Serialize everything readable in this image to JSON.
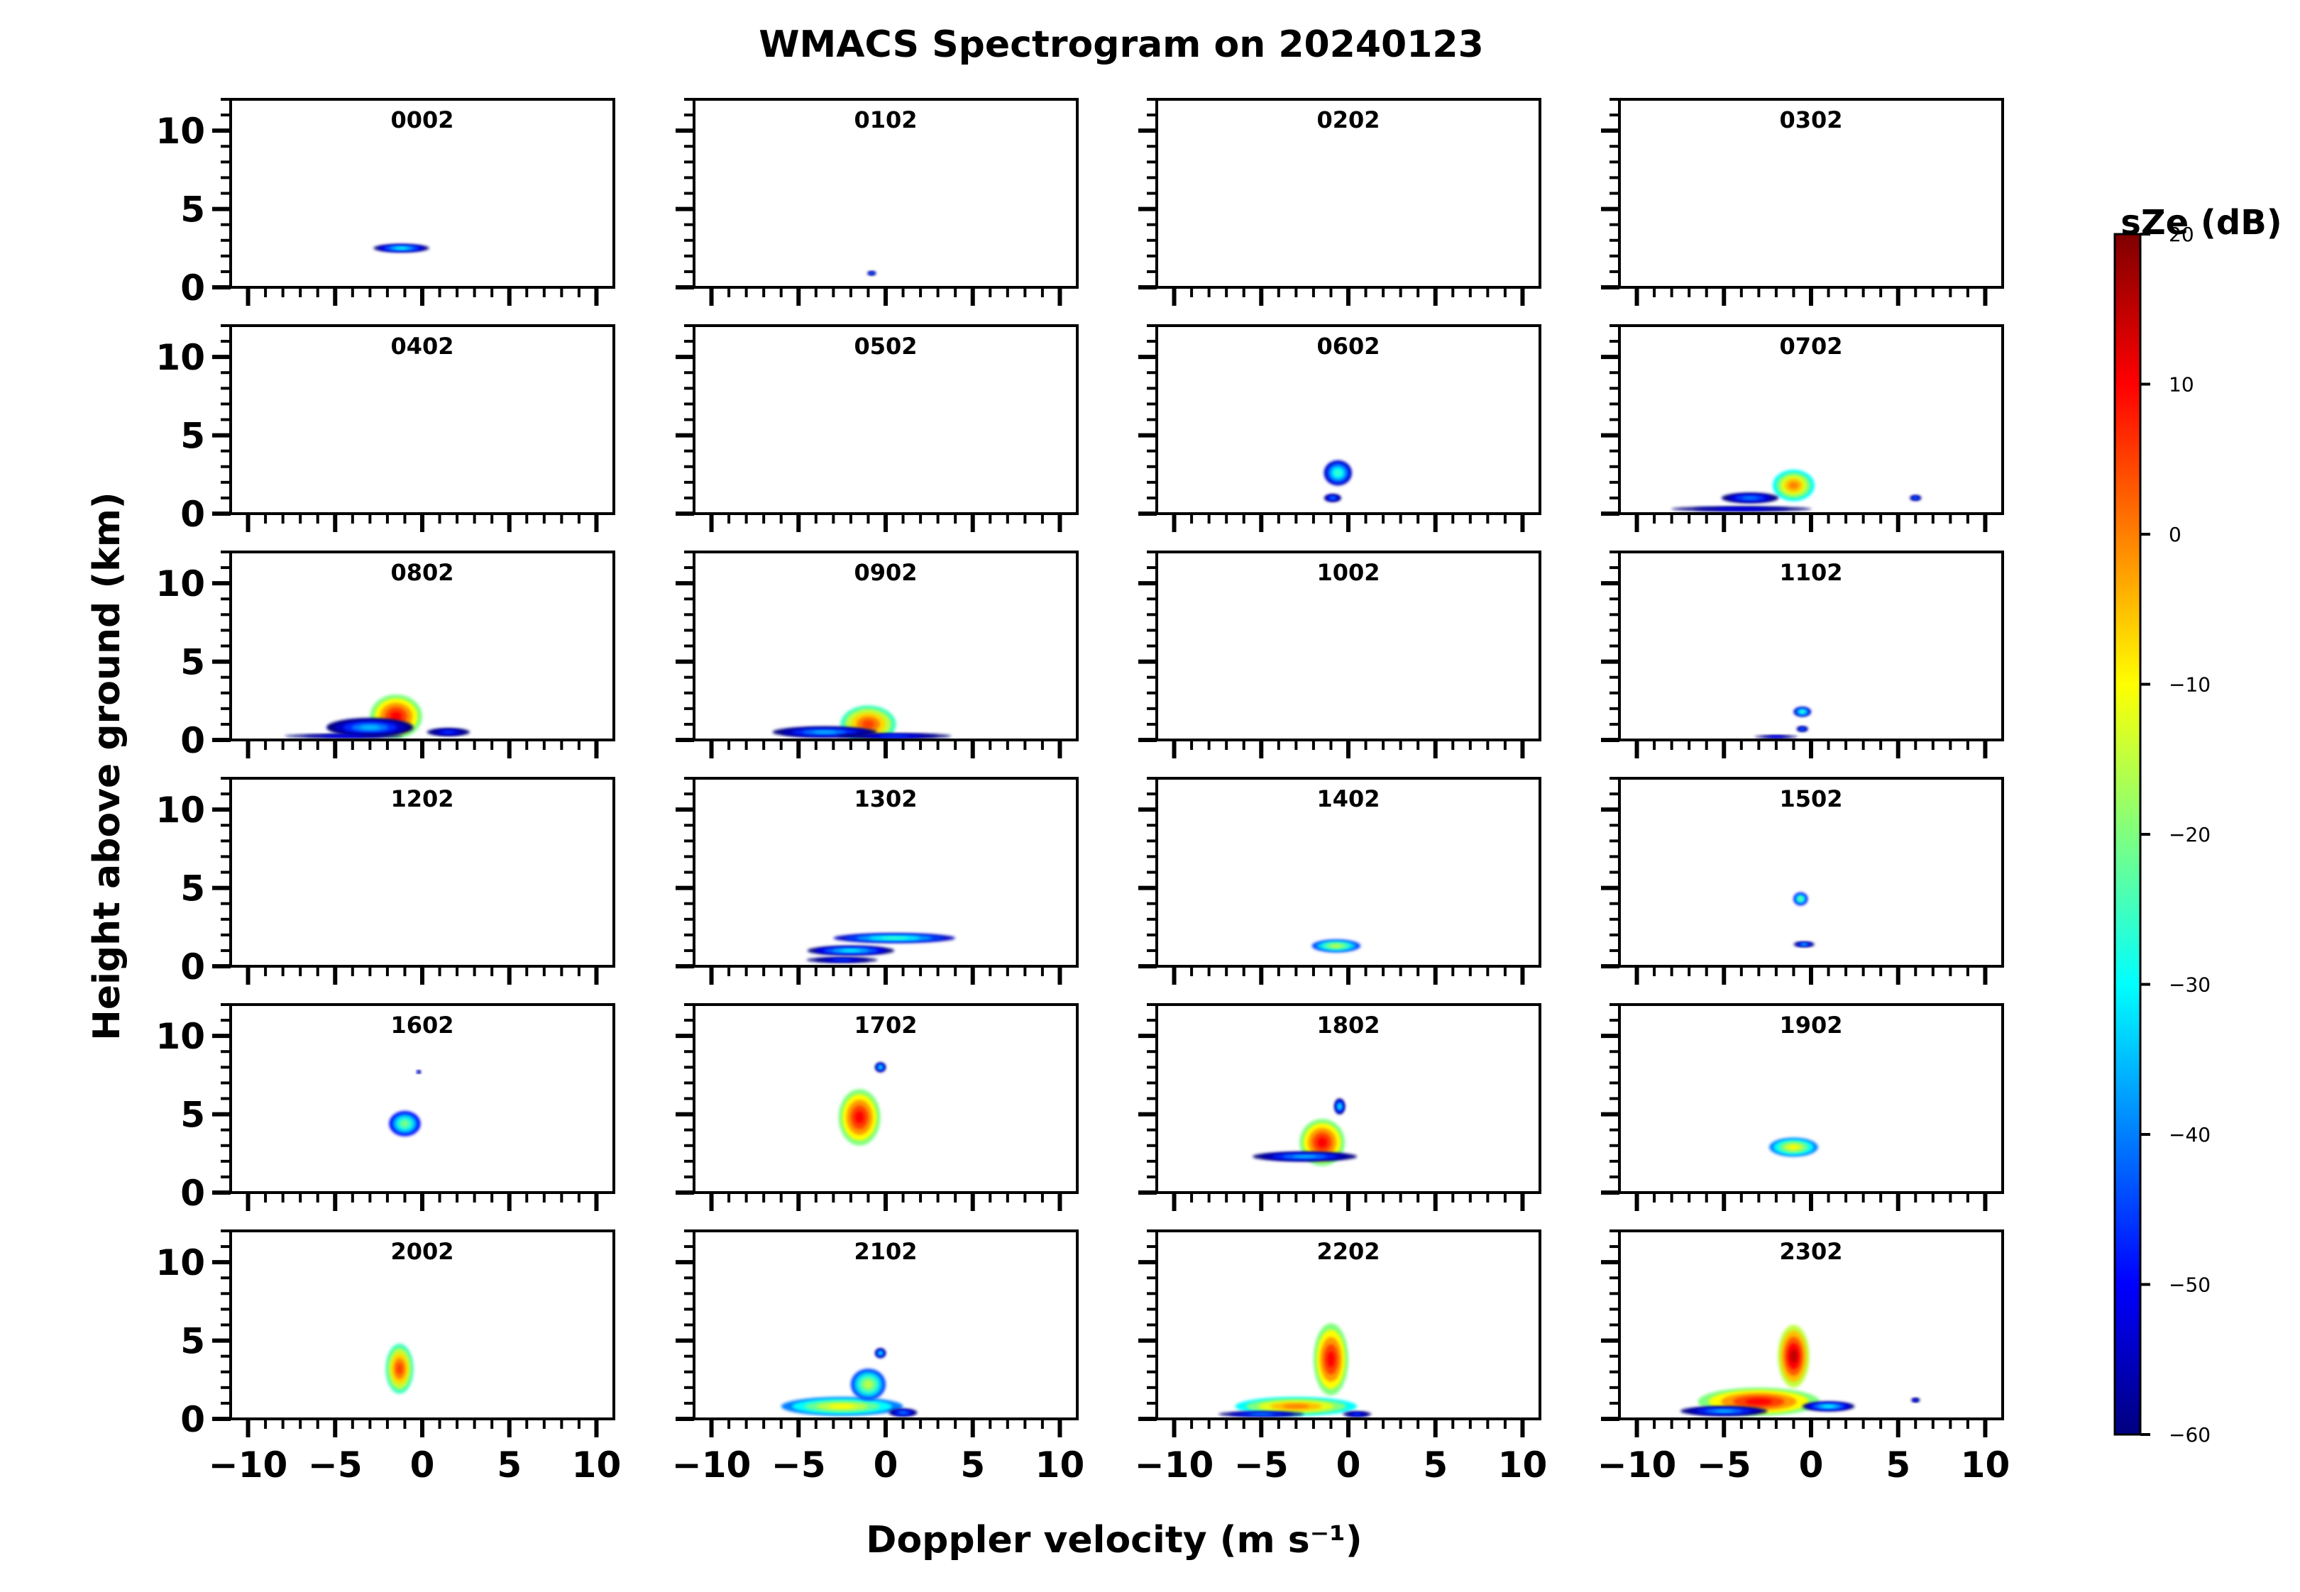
{
  "chart_data": {
    "type": "heatmap",
    "title": "WMACS Spectrogram on 20240123",
    "xlabel": "Doppler velocity (m s⁻¹)",
    "ylabel": "Height above ground (km)",
    "xlim": [
      -11,
      11
    ],
    "ylim": [
      0,
      12
    ],
    "xticks": [
      -10,
      -5,
      0,
      5,
      10
    ],
    "yticks": [
      0,
      5,
      10
    ],
    "xtick_labels": [
      "−10",
      "−5",
      "0",
      "5",
      "10"
    ],
    "ytick_labels": [
      "0",
      "5",
      "10"
    ],
    "grid": false,
    "colorbar": {
      "label": "sZe (dB)",
      "range": [
        -60,
        20
      ],
      "ticks": [
        -60,
        -50,
        -40,
        -30,
        -20,
        -10,
        0,
        10,
        20
      ],
      "tick_labels": [
        "−60",
        "−50",
        "−40",
        "−30",
        "−20",
        "−10",
        "0",
        "10",
        "20"
      ],
      "colormap": "jet",
      "colors": [
        "#00007f",
        "#0000ff",
        "#007fff",
        "#00ffff",
        "#7fff7f",
        "#ffff00",
        "#ff7f00",
        "#ff0000",
        "#7f0000"
      ]
    },
    "panels": [
      {
        "label": "0002",
        "blobs": [
          {
            "v": -1.2,
            "h": 2.5,
            "dv": 1.6,
            "dh": 0.25,
            "db": -30
          }
        ]
      },
      {
        "label": "0102",
        "blobs": [
          {
            "v": -0.8,
            "h": 0.9,
            "dv": 0.3,
            "dh": 0.15,
            "db": -40
          }
        ]
      },
      {
        "label": "0202",
        "blobs": []
      },
      {
        "label": "0302",
        "blobs": []
      },
      {
        "label": "0402",
        "blobs": []
      },
      {
        "label": "0502",
        "blobs": []
      },
      {
        "label": "0602",
        "blobs": [
          {
            "v": -0.6,
            "h": 2.6,
            "dv": 0.8,
            "dh": 0.8,
            "db": -25
          },
          {
            "v": -0.9,
            "h": 1.0,
            "dv": 0.6,
            "dh": 0.3,
            "db": -40
          }
        ]
      },
      {
        "label": "0702",
        "blobs": [
          {
            "v": -1.0,
            "h": 1.8,
            "dv": 1.2,
            "dh": 1.0,
            "db": 0
          },
          {
            "v": -3.5,
            "h": 1.0,
            "dv": 2.0,
            "dh": 0.4,
            "db": -40
          },
          {
            "v": -4.0,
            "h": 0.3,
            "dv": 6.5,
            "dh": 0.25,
            "db": -50
          },
          {
            "v": 6.0,
            "h": 1.0,
            "dv": 0.4,
            "dh": 0.2,
            "db": -40
          }
        ]
      },
      {
        "label": "0802",
        "blobs": [
          {
            "v": -1.5,
            "h": 1.5,
            "dv": 1.5,
            "dh": 1.4,
            "db": 10
          },
          {
            "v": -3.0,
            "h": 0.8,
            "dv": 2.5,
            "dh": 0.6,
            "db": -35
          },
          {
            "v": -4.5,
            "h": 0.25,
            "dv": 5.5,
            "dh": 0.2,
            "db": -50
          },
          {
            "v": 1.5,
            "h": 0.5,
            "dv": 1.5,
            "dh": 0.3,
            "db": -45
          }
        ]
      },
      {
        "label": "0902",
        "blobs": [
          {
            "v": -1.0,
            "h": 1.0,
            "dv": 1.6,
            "dh": 1.2,
            "db": 5
          },
          {
            "v": -3.5,
            "h": 0.5,
            "dv": 3.0,
            "dh": 0.35,
            "db": -35
          },
          {
            "v": 0.5,
            "h": 0.25,
            "dv": 4.0,
            "dh": 0.2,
            "db": -45
          }
        ]
      },
      {
        "label": "1002",
        "blobs": []
      },
      {
        "label": "1102",
        "blobs": [
          {
            "v": -0.5,
            "h": 1.8,
            "dv": 0.5,
            "dh": 0.3,
            "db": -25
          },
          {
            "v": -0.5,
            "h": 0.7,
            "dv": 0.4,
            "dh": 0.2,
            "db": -40
          },
          {
            "v": -2.0,
            "h": 0.2,
            "dv": 2.0,
            "dh": 0.15,
            "db": -50
          }
        ]
      },
      {
        "label": "1202",
        "blobs": []
      },
      {
        "label": "1302",
        "blobs": [
          {
            "v": 0.5,
            "h": 1.8,
            "dv": 3.5,
            "dh": 0.3,
            "db": -25
          },
          {
            "v": -2.0,
            "h": 1.0,
            "dv": 2.5,
            "dh": 0.3,
            "db": -30
          },
          {
            "v": -2.5,
            "h": 0.4,
            "dv": 2.5,
            "dh": 0.2,
            "db": -45
          }
        ]
      },
      {
        "label": "1402",
        "blobs": [
          {
            "v": -0.7,
            "h": 1.3,
            "dv": 1.4,
            "dh": 0.4,
            "db": -15
          }
        ]
      },
      {
        "label": "1502",
        "blobs": [
          {
            "v": -0.6,
            "h": 4.3,
            "dv": 0.4,
            "dh": 0.4,
            "db": -20
          },
          {
            "v": -0.4,
            "h": 1.4,
            "dv": 0.6,
            "dh": 0.15,
            "db": -35
          }
        ]
      },
      {
        "label": "1602",
        "blobs": [
          {
            "v": -1.0,
            "h": 4.4,
            "dv": 0.9,
            "dh": 0.8,
            "db": -20
          },
          {
            "v": -0.2,
            "h": 7.7,
            "dv": 0.15,
            "dh": 0.1,
            "db": -45
          }
        ]
      },
      {
        "label": "1702",
        "blobs": [
          {
            "v": -1.5,
            "h": 4.8,
            "dv": 1.2,
            "dh": 1.8,
            "db": 10
          },
          {
            "v": -0.3,
            "h": 8.0,
            "dv": 0.3,
            "dh": 0.3,
            "db": -30
          }
        ]
      },
      {
        "label": "1802",
        "blobs": [
          {
            "v": -1.5,
            "h": 3.2,
            "dv": 1.3,
            "dh": 1.5,
            "db": 10
          },
          {
            "v": -2.5,
            "h": 2.3,
            "dv": 3.0,
            "dh": 0.3,
            "db": -35
          },
          {
            "v": -0.5,
            "h": 5.5,
            "dv": 0.3,
            "dh": 0.5,
            "db": -30
          }
        ]
      },
      {
        "label": "1902",
        "blobs": [
          {
            "v": -1.0,
            "h": 2.9,
            "dv": 1.4,
            "dh": 0.6,
            "db": -10
          }
        ]
      },
      {
        "label": "2002",
        "blobs": [
          {
            "v": -1.3,
            "h": 3.2,
            "dv": 0.8,
            "dh": 1.6,
            "db": 5
          }
        ]
      },
      {
        "label": "2102",
        "blobs": [
          {
            "v": -2.5,
            "h": 0.8,
            "dv": 3.5,
            "dh": 0.6,
            "db": -10
          },
          {
            "v": -1.0,
            "h": 2.2,
            "dv": 1.0,
            "dh": 1.0,
            "db": -15
          },
          {
            "v": -0.3,
            "h": 4.2,
            "dv": 0.3,
            "dh": 0.3,
            "db": -30
          },
          {
            "v": 1.0,
            "h": 0.4,
            "dv": 1.0,
            "dh": 0.3,
            "db": -40
          }
        ]
      },
      {
        "label": "2202",
        "blobs": [
          {
            "v": -1.0,
            "h": 3.8,
            "dv": 1.0,
            "dh": 2.3,
            "db": 10
          },
          {
            "v": -3.0,
            "h": 0.8,
            "dv": 3.5,
            "dh": 0.6,
            "db": 0
          },
          {
            "v": -5.0,
            "h": 0.3,
            "dv": 3.0,
            "dh": 0.2,
            "db": -40
          },
          {
            "v": 0.5,
            "h": 0.3,
            "dv": 1.0,
            "dh": 0.2,
            "db": -45
          }
        ]
      },
      {
        "label": "2302",
        "blobs": [
          {
            "v": -1.0,
            "h": 4.0,
            "dv": 0.9,
            "dh": 2.0,
            "db": 15
          },
          {
            "v": -3.0,
            "h": 1.1,
            "dv": 3.5,
            "dh": 0.9,
            "db": 10
          },
          {
            "v": -5.0,
            "h": 0.5,
            "dv": 2.5,
            "dh": 0.3,
            "db": -35
          },
          {
            "v": 1.0,
            "h": 0.8,
            "dv": 1.5,
            "dh": 0.3,
            "db": -30
          },
          {
            "v": 6.0,
            "h": 1.2,
            "dv": 0.3,
            "dh": 0.15,
            "db": -45
          }
        ]
      }
    ]
  }
}
